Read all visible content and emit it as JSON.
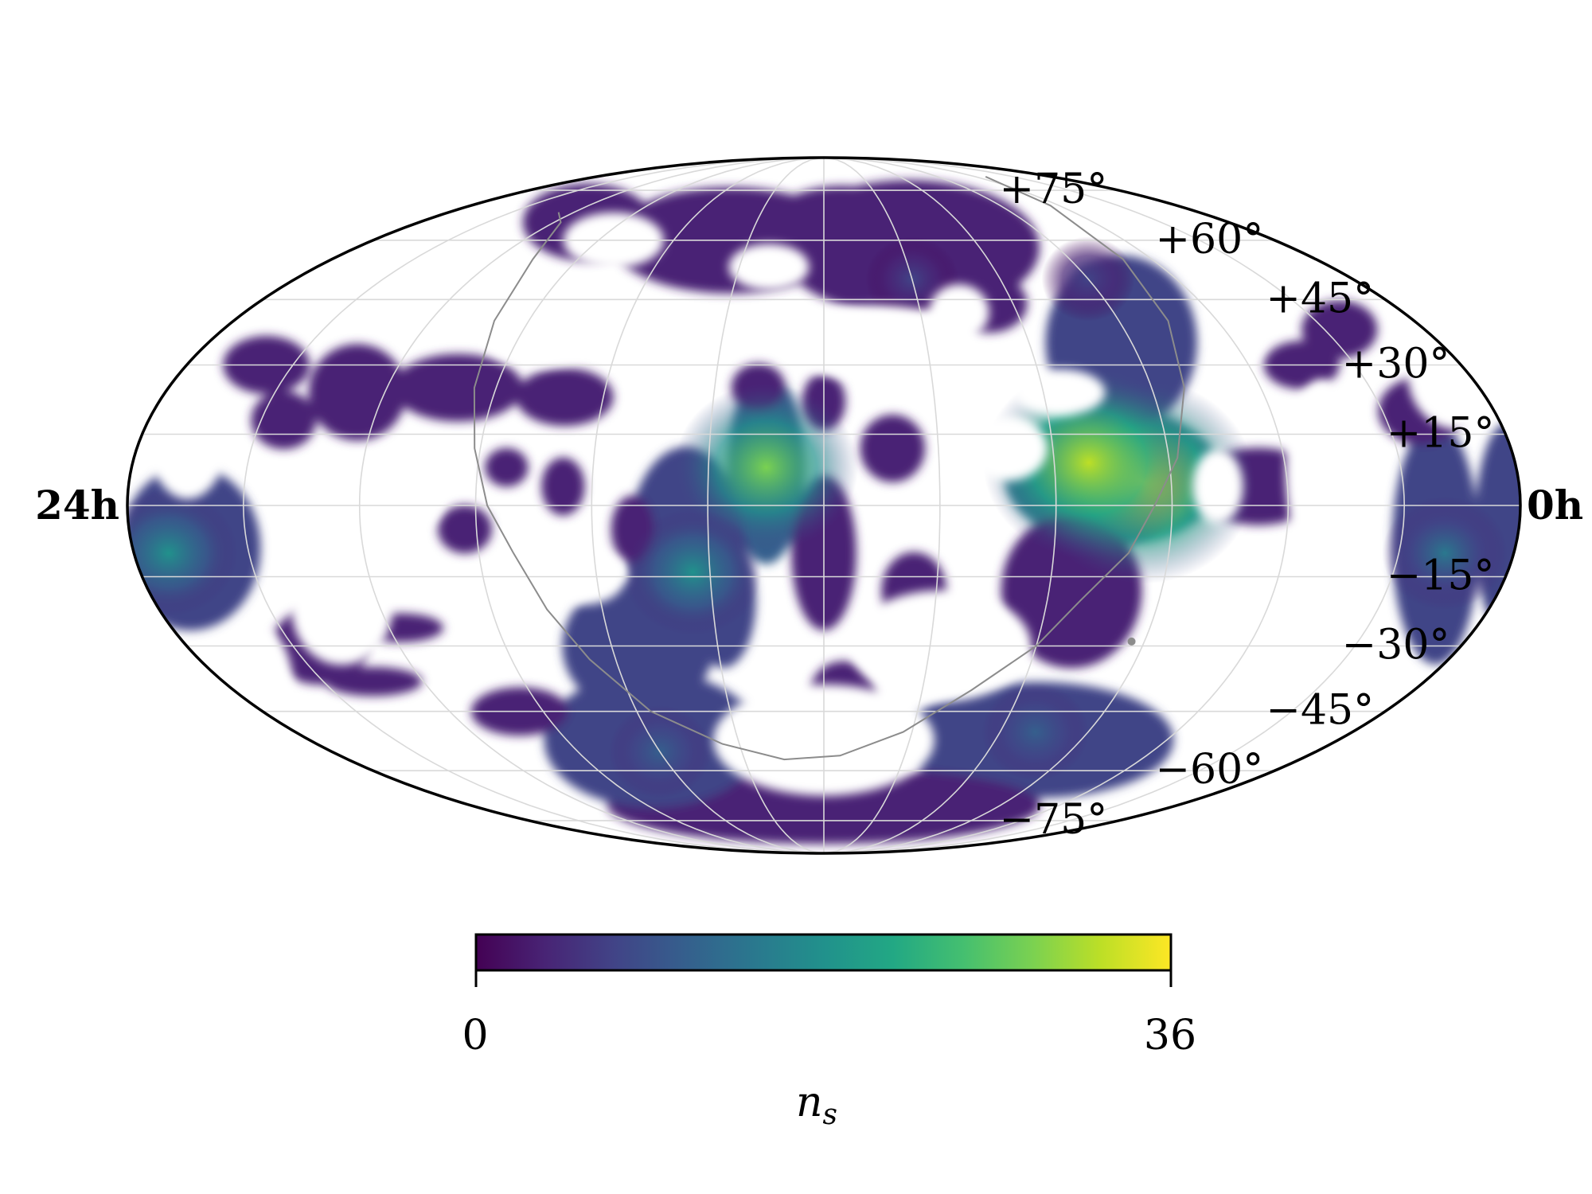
{
  "chart_data": {
    "type": "heatmap",
    "projection": "mollweide",
    "colormap": "viridis",
    "background_color": "#ffffff",
    "frame_color": "#000000",
    "grid": true,
    "grid_color": "#d9d9d9",
    "galactic_plane_color": "#8c8c8c",
    "ra_labels": {
      "left": "24h",
      "right": "0h"
    },
    "dec_ticks": [
      {
        "value": 75,
        "north": "+75°",
        "south": "−75°"
      },
      {
        "value": 60,
        "north": "+60°",
        "south": "−60°"
      },
      {
        "value": 45,
        "north": "+45°",
        "south": "−45°"
      },
      {
        "value": 30,
        "north": "+30°",
        "south": "−30°"
      },
      {
        "value": 15,
        "north": "+15°",
        "south": "−15°"
      }
    ],
    "colorbar": {
      "min": 0,
      "max": 36,
      "min_label": "0",
      "max_label": "36",
      "label": "n_s",
      "label_main": "n",
      "label_sub": "s"
    },
    "hotspots": [
      {
        "ra_h": 17.5,
        "dec": 5,
        "value": 36
      },
      {
        "ra_h": 16.6,
        "dec": 9,
        "value": 33
      },
      {
        "ra_h": 11.0,
        "dec": 8,
        "value": 27
      },
      {
        "ra_h": 9.7,
        "dec": -14,
        "value": 17
      },
      {
        "ra_h": 0.6,
        "dec": -10,
        "value": 17
      },
      {
        "ra_h": 22.8,
        "dec": -10,
        "value": 14
      },
      {
        "ra_h": 16.8,
        "dec": -50,
        "value": 10
      },
      {
        "ra_h": 8.0,
        "dec": -55,
        "value": 9
      },
      {
        "ra_h": 14.0,
        "dec": 50,
        "value": 7
      },
      {
        "ra_h": 18.0,
        "dec": 50,
        "value": 7
      }
    ],
    "regions": [
      {
        "ra_h": 17.0,
        "dec": 6,
        "rx": 20,
        "ry": 14,
        "value": 14
      },
      {
        "ra_h": 17.8,
        "dec": 35,
        "rx": 14,
        "ry": 18,
        "value": 6
      },
      {
        "ra_h": 16.4,
        "dec": -18,
        "rx": 13,
        "ry": 16,
        "value": 5
      },
      {
        "ra_h": 22.6,
        "dec": -8,
        "rx": 8,
        "ry": 25,
        "value": 6
      },
      {
        "ra_h": 22.7,
        "dec": 20,
        "rx": 8,
        "ry": 7,
        "value": 3
      },
      {
        "ra_h": 22.3,
        "dec": 38,
        "rx": 7,
        "ry": 6,
        "value": 3
      },
      {
        "ra_h": 14.2,
        "dec": 58,
        "rx": 24,
        "ry": 14,
        "value": 5
      },
      {
        "ra_h": 12.5,
        "dec": 63,
        "rx": 14,
        "ry": 9,
        "value": 3
      },
      {
        "ra_h": 9.5,
        "dec": 60,
        "rx": 22,
        "ry": 11,
        "value": 4
      },
      {
        "ra_h": 5.0,
        "dec": 65,
        "rx": 12,
        "ry": 8,
        "value": 2
      },
      {
        "ra_h": 11.0,
        "dec": 8,
        "rx": 7,
        "ry": 20,
        "value": 10
      },
      {
        "ra_h": 12.0,
        "dec": -10,
        "rx": 6,
        "ry": 16,
        "value": 4
      },
      {
        "ra_h": 10.2,
        "dec": -20,
        "rx": 6,
        "ry": 14,
        "value": 6
      },
      {
        "ra_h": 9.6,
        "dec": -10,
        "rx": 11,
        "ry": 22,
        "value": 8
      },
      {
        "ra_h": 8.5,
        "dec": -30,
        "rx": 14,
        "ry": 14,
        "value": 6
      },
      {
        "ra_h": 7.5,
        "dec": 4,
        "rx": 4,
        "ry": 6,
        "value": 3
      },
      {
        "ra_h": 7.3,
        "dec": 23,
        "rx": 9,
        "ry": 6,
        "value": 3
      },
      {
        "ra_h": 5.3,
        "dec": 25,
        "rx": 12,
        "ry": 7,
        "value": 4
      },
      {
        "ra_h": 2.4,
        "dec": 18,
        "rx": 6,
        "ry": 6,
        "value": 3
      },
      {
        "ra_h": 3.5,
        "dec": 24,
        "rx": 9,
        "ry": 10,
        "value": 3
      },
      {
        "ra_h": 1.5,
        "dec": 30,
        "rx": 8,
        "ry": 6,
        "value": 4
      },
      {
        "ra_h": 1.0,
        "dec": -9,
        "rx": 13,
        "ry": 17,
        "value": 7
      },
      {
        "ra_h": 2.5,
        "dec": -30,
        "rx": 9,
        "ry": 8,
        "value": 3
      },
      {
        "ra_h": 23.8,
        "dec": -5,
        "rx": 6,
        "ry": 22,
        "value": 6
      },
      {
        "ra_h": 21.0,
        "dec": 30,
        "rx": 7,
        "ry": 5,
        "value": 2
      },
      {
        "ra_h": 13.2,
        "dec": 12,
        "rx": 6,
        "ry": 7,
        "value": 3
      },
      {
        "ra_h": 13.6,
        "dec": -18,
        "rx": 6,
        "ry": 8,
        "value": 3
      },
      {
        "ra_h": 12.4,
        "dec": -40,
        "rx": 6,
        "ry": 6,
        "value": 2
      },
      {
        "ra_h": 12.0,
        "dec": 22,
        "rx": 4,
        "ry": 6,
        "value": 3
      },
      {
        "ra_h": 10.8,
        "dec": 25,
        "rx": 5,
        "ry": 5,
        "value": 3
      },
      {
        "ra_h": 8.7,
        "dec": -5,
        "rx": 4,
        "ry": 7,
        "value": 3
      },
      {
        "ra_h": 6.5,
        "dec": 8,
        "rx": 4,
        "ry": 4,
        "value": 3
      },
      {
        "ra_h": 5.8,
        "dec": -5,
        "rx": 5,
        "ry": 5,
        "value": 3
      },
      {
        "ra_h": 4.2,
        "dec": -26,
        "rx": 8,
        "ry": 3,
        "value": 2
      },
      {
        "ra_h": 3.0,
        "dec": -38,
        "rx": 9,
        "ry": 3,
        "value": 2
      },
      {
        "ra_h": 17.0,
        "dec": -52,
        "rx": 25,
        "ry": 12,
        "value": 7
      },
      {
        "ra_h": 12.0,
        "dec": -70,
        "rx": 40,
        "ry": 8,
        "value": 4
      },
      {
        "ra_h": 8.0,
        "dec": -52,
        "rx": 20,
        "ry": 14,
        "value": 7
      },
      {
        "ra_h": 5.5,
        "dec": -45,
        "rx": 9,
        "ry": 5,
        "value": 2
      },
      {
        "ra_h": 15.5,
        "dec": 44,
        "rx": 7,
        "ry": 6,
        "value": 4
      },
      {
        "ra_h": 19.5,
        "dec": 4,
        "rx": 12,
        "ry": 8,
        "value": 4
      }
    ],
    "mask": [
      {
        "ra_h": 16.3,
        "dec": 24,
        "rx": 9,
        "ry": 5
      },
      {
        "ra_h": 14.8,
        "dec": 42,
        "rx": 6,
        "ry": 6
      },
      {
        "ra_h": 15.2,
        "dec": 12,
        "rx": 8,
        "ry": 7
      },
      {
        "ra_h": 18.8,
        "dec": 4,
        "rx": 5,
        "ry": 8
      },
      {
        "ra_h": 10.7,
        "dec": 53,
        "rx": 8,
        "ry": 5
      },
      {
        "ra_h": 6.4,
        "dec": 60,
        "rx": 10,
        "ry": 6
      },
      {
        "ra_h": 20.6,
        "dec": 7,
        "rx": 7,
        "ry": 20
      },
      {
        "ra_h": 20.4,
        "dec": 40,
        "rx": 6,
        "ry": 10
      },
      {
        "ra_h": 20.0,
        "dec": -15,
        "rx": 10,
        "ry": 6
      },
      {
        "ra_h": 0.8,
        "dec": 15,
        "rx": 8,
        "ry": 14
      },
      {
        "ra_h": 23.8,
        "dec": 28,
        "rx": 10,
        "ry": 12
      },
      {
        "ra_h": 14.2,
        "dec": -30,
        "rx": 18,
        "ry": 12
      },
      {
        "ra_h": 3.3,
        "dec": -22,
        "rx": 10,
        "ry": 12
      },
      {
        "ra_h": 4.8,
        "dec": 4,
        "rx": 8,
        "ry": 10
      },
      {
        "ra_h": 7.8,
        "dec": -15,
        "rx": 8,
        "ry": 6
      },
      {
        "ra_h": 19.5,
        "dec": -32,
        "rx": 12,
        "ry": 6
      },
      {
        "ra_h": 6.5,
        "dec": 36,
        "rx": 12,
        "ry": 6
      },
      {
        "ra_h": 13.0,
        "dec": 35,
        "rx": 20,
        "ry": 8
      },
      {
        "ra_h": 2.5,
        "dec": 48,
        "rx": 10,
        "ry": 8
      },
      {
        "ra_h": 12.0,
        "dec": -52,
        "rx": 22,
        "ry": 12
      },
      {
        "ra_h": 0.5,
        "dec": -40,
        "rx": 7,
        "ry": 14
      }
    ],
    "galactic_plane": [
      {
        "ra_h": 20.55,
        "dec": 80
      },
      {
        "ra_h": 19.7,
        "dec": 70
      },
      {
        "ra_h": 19.3,
        "dec": 55
      },
      {
        "ra_h": 19.0,
        "dec": 40
      },
      {
        "ra_h": 18.6,
        "dec": 25
      },
      {
        "ra_h": 18.15,
        "dec": 10
      },
      {
        "ra_h": 17.7,
        "dec": 0
      },
      {
        "ra_h": 17.3,
        "dec": -10
      },
      {
        "ra_h": 16.6,
        "dec": -20
      },
      {
        "ra_h": 16.0,
        "dec": -30
      },
      {
        "ra_h": 15.0,
        "dec": -40
      },
      {
        "ra_h": 13.8,
        "dec": -50
      },
      {
        "ra_h": 12.4,
        "dec": -56
      },
      {
        "ra_h": 11.0,
        "dec": -57
      },
      {
        "ra_h": 9.6,
        "dec": -53
      },
      {
        "ra_h": 8.3,
        "dec": -45
      },
      {
        "ra_h": 7.5,
        "dec": -33
      },
      {
        "ra_h": 7.0,
        "dec": -22
      },
      {
        "ra_h": 6.6,
        "dec": -10
      },
      {
        "ra_h": 6.2,
        "dec": 0
      },
      {
        "ra_h": 5.9,
        "dec": 12
      },
      {
        "ra_h": 5.6,
        "dec": 25
      },
      {
        "ra_h": 5.3,
        "dec": 40
      },
      {
        "ra_h": 4.9,
        "dec": 55
      },
      {
        "ra_h": 4.2,
        "dec": 65
      },
      {
        "ra_h": 3.5,
        "dec": 68
      }
    ],
    "galactic_center": {
      "ra_h": 17.76,
      "dec": -29
    }
  }
}
